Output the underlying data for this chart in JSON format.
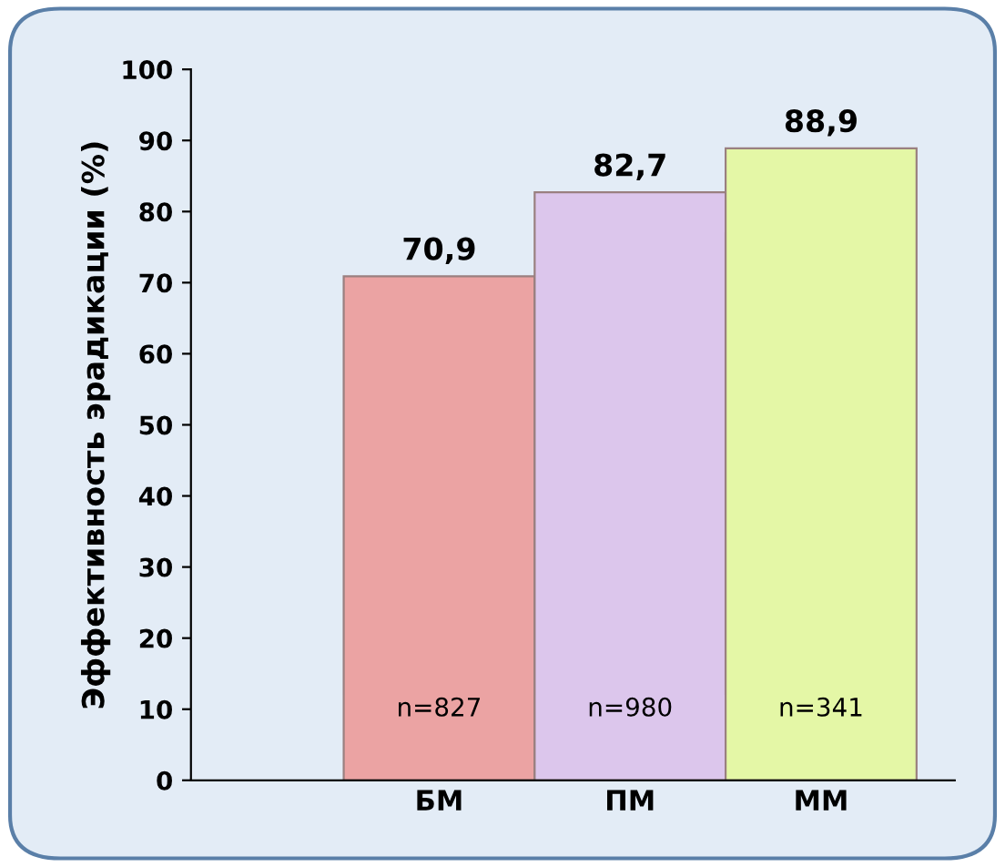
{
  "chart_data": {
    "type": "bar",
    "ylabel": "Эффективность эрадикации (%)",
    "categories": [
      "БМ",
      "ПМ",
      "ММ"
    ],
    "values": [
      70.9,
      82.7,
      88.9
    ],
    "colors": [
      "#eba3a3",
      "#dcc6ec",
      "#e4f7a6"
    ],
    "value_labels": [
      "70,9",
      "82,7",
      "88,9"
    ],
    "ylim": [
      0,
      100
    ],
    "yticks": [
      0,
      10,
      20,
      30,
      40,
      50,
      60,
      70,
      80,
      90,
      100
    ],
    "grid": false,
    "legend": false,
    "annotations": [
      "n=827",
      "n=980",
      "n=341"
    ]
  }
}
